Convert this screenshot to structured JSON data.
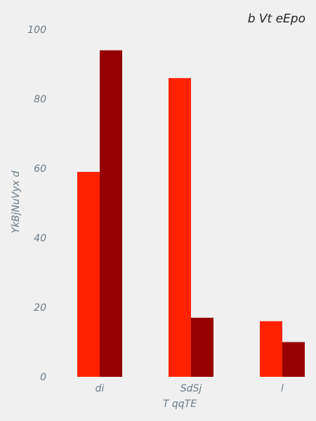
{
  "chart_data": {
    "type": "bar",
    "title": "b  Vt eEpo",
    "xlabel": "T qqTE",
    "ylabel": "YkBjNuVyx d",
    "categories": [
      "di",
      "SdSj",
      "l"
    ],
    "series": [
      {
        "values": [
          59,
          86,
          16
        ],
        "color": "#ff2200"
      },
      {
        "values": [
          94,
          17,
          10
        ],
        "color": "#960000"
      }
    ],
    "ylim": [
      0,
      100
    ],
    "yticks": [
      0,
      20,
      40,
      60,
      80,
      100
    ],
    "grid": false,
    "legend": false
  }
}
